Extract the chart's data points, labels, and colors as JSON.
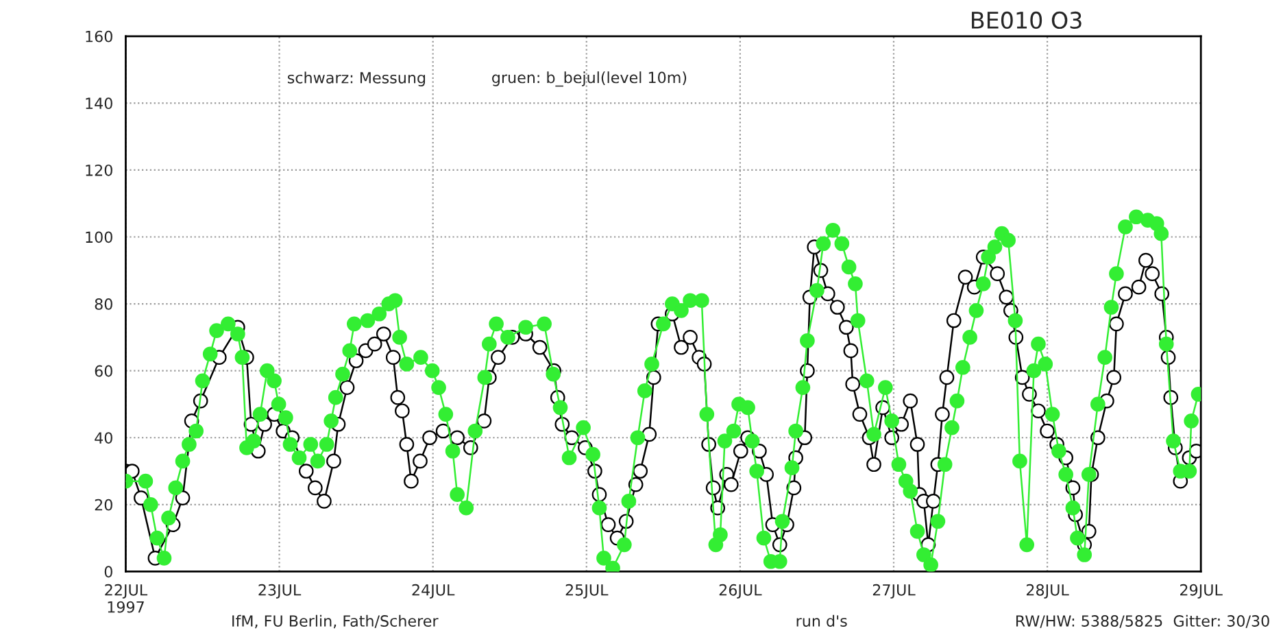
{
  "chart_data": {
    "type": "line",
    "title": "BE010 O3",
    "annotations": [
      "schwarz: Messung",
      "gruen: b_bejul(level 10m)",
      "IfM, FU Berlin, Fath/Scherer",
      "run d's",
      "RW/HW: 5388/5825  Gitter: 30/30"
    ],
    "xlim": [
      "1997-07-22",
      "1997-07-29"
    ],
    "xticks": [
      {
        "value": "1997-07-22",
        "label": "22JUL\n1997"
      },
      {
        "value": "1997-07-23",
        "label": "23JUL"
      },
      {
        "value": "1997-07-24",
        "label": "24JUL"
      },
      {
        "value": "1997-07-25",
        "label": "25JUL"
      },
      {
        "value": "1997-07-26",
        "label": "26JUL"
      },
      {
        "value": "1997-07-27",
        "label": "27JUL"
      },
      {
        "value": "1997-07-28",
        "label": "28JUL"
      },
      {
        "value": "1997-07-29",
        "label": "29JUL"
      }
    ],
    "ylim": [
      0,
      160
    ],
    "yticks": [
      0,
      20,
      40,
      60,
      80,
      100,
      120,
      140,
      160
    ],
    "grid": true,
    "marker": "circle",
    "series": [
      {
        "color": "#000000",
        "x": [
          "1997-07-22T00:00",
          "1997-07-22T01:00",
          "1997-07-22T02:24",
          "1997-07-22T04:36",
          "1997-07-22T07:24",
          "1997-07-22T08:54",
          "1997-07-22T10:18",
          "1997-07-22T11:42",
          "1997-07-22T14:36",
          "1997-07-22T17:30",
          "1997-07-22T18:54",
          "1997-07-22T19:36",
          "1997-07-22T20:42",
          "1997-07-22T21:42",
          "1997-07-22T23:12",
          "1997-07-23T00:36",
          "1997-07-23T02:00",
          "1997-07-23T04:12",
          "1997-07-23T05:36",
          "1997-07-23T07:00",
          "1997-07-23T08:30",
          "1997-07-23T09:12",
          "1997-07-23T10:36",
          "1997-07-23T12:00",
          "1997-07-23T13:30",
          "1997-07-23T14:54",
          "1997-07-23T16:18",
          "1997-07-23T17:48",
          "1997-07-23T18:30",
          "1997-07-23T19:12",
          "1997-07-23T19:54",
          "1997-07-23T20:36",
          "1997-07-23T22:00",
          "1997-07-23T23:30",
          "1997-07-24T01:36",
          "1997-07-24T03:48",
          "1997-07-24T05:54",
          "1997-07-24T08:00",
          "1997-07-24T08:48",
          "1997-07-24T10:12",
          "1997-07-24T12:24",
          "1997-07-24T14:30",
          "1997-07-24T16:42",
          "1997-07-24T18:54",
          "1997-07-24T19:30",
          "1997-07-24T20:12",
          "1997-07-24T21:42",
          "1997-07-24T23:48",
          "1997-07-25T01:18",
          "1997-07-25T02:00",
          "1997-07-25T03:24",
          "1997-07-25T04:48",
          "1997-07-25T06:12",
          "1997-07-25T07:42",
          "1997-07-25T08:24",
          "1997-07-25T09:48",
          "1997-07-25T10:30",
          "1997-07-25T11:12",
          "1997-07-25T13:24",
          "1997-07-25T14:48",
          "1997-07-25T16:12",
          "1997-07-25T17:36",
          "1997-07-25T18:24",
          "1997-07-25T19:06",
          "1997-07-25T19:48",
          "1997-07-25T20:30",
          "1997-07-25T21:54",
          "1997-07-25T22:36",
          "1997-07-26T00:06",
          "1997-07-26T01:12",
          "1997-07-26T03:00",
          "1997-07-26T04:06",
          "1997-07-26T05:06",
          "1997-07-26T06:12",
          "1997-07-26T07:18",
          "1997-07-26T08:24",
          "1997-07-26T08:42",
          "1997-07-26T10:06",
          "1997-07-26T10:30",
          "1997-07-26T10:54",
          "1997-07-26T11:36",
          "1997-07-26T12:36",
          "1997-07-26T13:42",
          "1997-07-26T15:12",
          "1997-07-26T16:36",
          "1997-07-26T17:18",
          "1997-07-26T17:36",
          "1997-07-26T18:42",
          "1997-07-26T20:12",
          "1997-07-26T20:54",
          "1997-07-26T22:18",
          "1997-07-26T23:42",
          "1997-07-27T01:12",
          "1997-07-27T02:36",
          "1997-07-27T03:42",
          "1997-07-27T04:00",
          "1997-07-27T04:42",
          "1997-07-27T05:24",
          "1997-07-27T06:12",
          "1997-07-27T06:54",
          "1997-07-27T07:36",
          "1997-07-27T08:18",
          "1997-07-27T09:24",
          "1997-07-27T11:12",
          "1997-07-27T12:36",
          "1997-07-27T14:00",
          "1997-07-27T16:12",
          "1997-07-27T17:36",
          "1997-07-27T18:18",
          "1997-07-27T19:06",
          "1997-07-27T20:06",
          "1997-07-27T21:12",
          "1997-07-27T22:36",
          "1997-07-28T00:00",
          "1997-07-28T01:30",
          "1997-07-28T02:54",
          "1997-07-28T04:00",
          "1997-07-28T04:24",
          "1997-07-28T05:48",
          "1997-07-28T06:30",
          "1997-07-28T06:54",
          "1997-07-28T07:54",
          "1997-07-28T09:18",
          "1997-07-28T10:24",
          "1997-07-28T10:48",
          "1997-07-28T12:12",
          "1997-07-28T14:18",
          "1997-07-28T15:24",
          "1997-07-28T16:24",
          "1997-07-28T17:54",
          "1997-07-28T18:36",
          "1997-07-28T18:54",
          "1997-07-28T19:18",
          "1997-07-28T20:00",
          "1997-07-28T20:48",
          "1997-07-28T22:12",
          "1997-07-28T23:18"
        ],
        "values": [
          30,
          30,
          22,
          4,
          14,
          22,
          45,
          51,
          64,
          73,
          64,
          44,
          36,
          44,
          47,
          42,
          40,
          30,
          25,
          21,
          33,
          44,
          55,
          63,
          66,
          68,
          71,
          64,
          52,
          48,
          38,
          27,
          33,
          40,
          42,
          40,
          37,
          45,
          58,
          64,
          70,
          71,
          67,
          60,
          52,
          44,
          40,
          37,
          30,
          23,
          14,
          10,
          15,
          26,
          30,
          41,
          58,
          74,
          77,
          67,
          70,
          64,
          62,
          38,
          25,
          19,
          29,
          26,
          36,
          40,
          36,
          29,
          14,
          8,
          14,
          25,
          34,
          40,
          60,
          82,
          97,
          90,
          83,
          79,
          73,
          66,
          56,
          47,
          40,
          32,
          49,
          40,
          44,
          51,
          38,
          23,
          21,
          8,
          21,
          32,
          47,
          58,
          75,
          88,
          85,
          94,
          89,
          82,
          78,
          70,
          58,
          53,
          48,
          42,
          38,
          34,
          25,
          17,
          8,
          12,
          29,
          40,
          51,
          58,
          74,
          83,
          85,
          93,
          89,
          83,
          70,
          64,
          52,
          37,
          27,
          34,
          36
        ]
      },
      {
        "color": "#33ee33",
        "x": [
          "1997-07-22T00:00",
          "1997-07-22T03:06",
          "1997-07-22T03:54",
          "1997-07-22T04:54",
          "1997-07-22T06:00",
          "1997-07-22T06:42",
          "1997-07-22T07:48",
          "1997-07-22T08:54",
          "1997-07-22T09:54",
          "1997-07-22T11:00",
          "1997-07-22T12:00",
          "1997-07-22T13:12",
          "1997-07-22T14:12",
          "1997-07-22T16:00",
          "1997-07-22T17:30",
          "1997-07-22T18:12",
          "1997-07-22T18:54",
          "1997-07-22T20:00",
          "1997-07-22T21:00",
          "1997-07-22T22:06",
          "1997-07-22T23:12",
          "1997-07-22T23:54",
          "1997-07-23T01:00",
          "1997-07-23T01:42",
          "1997-07-23T03:06",
          "1997-07-23T04:54",
          "1997-07-23T06:00",
          "1997-07-23T07:24",
          "1997-07-23T08:06",
          "1997-07-23T08:48",
          "1997-07-23T09:54",
          "1997-07-23T11:00",
          "1997-07-23T11:42",
          "1997-07-23T13:48",
          "1997-07-23T15:36",
          "1997-07-23T17:06",
          "1997-07-23T18:06",
          "1997-07-23T18:48",
          "1997-07-23T19:54",
          "1997-07-23T22:06",
          "1997-07-23T23:54",
          "1997-07-24T00:54",
          "1997-07-24T02:00",
          "1997-07-24T03:06",
          "1997-07-24T03:48",
          "1997-07-24T05:12",
          "1997-07-24T06:36",
          "1997-07-24T08:06",
          "1997-07-24T08:48",
          "1997-07-24T09:54",
          "1997-07-24T11:42",
          "1997-07-24T14:30",
          "1997-07-24T17:24",
          "1997-07-24T18:48",
          "1997-07-24T19:54",
          "1997-07-24T21:18",
          "1997-07-24T23:30",
          "1997-07-25T01:00",
          "1997-07-25T02:00",
          "1997-07-25T02:42",
          "1997-07-25T04:06",
          "1997-07-25T05:54",
          "1997-07-25T06:36",
          "1997-07-25T08:00",
          "1997-07-25T09:06",
          "1997-07-25T10:12",
          "1997-07-25T12:00",
          "1997-07-25T13:24",
          "1997-07-25T14:48",
          "1997-07-25T16:12",
          "1997-07-25T18:00",
          "1997-07-25T18:48",
          "1997-07-25T20:12",
          "1997-07-25T20:54",
          "1997-07-25T21:36",
          "1997-07-25T23:00",
          "1997-07-25T23:48",
          "1997-07-26T01:12",
          "1997-07-26T01:54",
          "1997-07-26T02:36",
          "1997-07-26T03:42",
          "1997-07-26T04:48",
          "1997-07-26T06:12",
          "1997-07-26T06:36",
          "1997-07-26T08:06",
          "1997-07-26T08:42",
          "1997-07-26T09:48",
          "1997-07-26T10:30",
          "1997-07-26T12:00",
          "1997-07-26T13:00",
          "1997-07-26T14:30",
          "1997-07-26T15:54",
          "1997-07-26T17:00",
          "1997-07-26T18:00",
          "1997-07-26T18:24",
          "1997-07-26T19:48",
          "1997-07-26T20:54",
          "1997-07-26T22:42",
          "1997-07-26T23:42",
          "1997-07-27T00:48",
          "1997-07-27T01:54",
          "1997-07-27T02:36",
          "1997-07-27T03:42",
          "1997-07-27T04:42",
          "1997-07-27T05:48",
          "1997-07-27T06:54",
          "1997-07-27T08:00",
          "1997-07-27T09:06",
          "1997-07-27T09:54",
          "1997-07-27T10:48",
          "1997-07-27T11:54",
          "1997-07-27T12:54",
          "1997-07-27T14:00",
          "1997-07-27T14:48",
          "1997-07-27T15:48",
          "1997-07-27T16:54",
          "1997-07-27T17:54",
          "1997-07-27T19:00",
          "1997-07-27T19:42",
          "1997-07-27T20:48",
          "1997-07-27T21:54",
          "1997-07-27T22:36",
          "1997-07-27T23:42",
          "1997-07-28T00:48",
          "1997-07-28T01:48",
          "1997-07-28T02:54",
          "1997-07-28T04:00",
          "1997-07-28T04:42",
          "1997-07-28T05:48",
          "1997-07-28T06:30",
          "1997-07-28T07:54",
          "1997-07-28T09:00",
          "1997-07-28T10:00",
          "1997-07-28T10:48",
          "1997-07-28T12:12",
          "1997-07-28T13:54",
          "1997-07-28T15:42",
          "1997-07-28T17:06",
          "1997-07-28T17:48",
          "1997-07-28T18:36",
          "1997-07-28T19:42",
          "1997-07-28T20:48",
          "1997-07-28T22:12",
          "1997-07-28T22:30",
          "1997-07-28T23:36"
        ],
        "values": [
          27,
          27,
          20,
          10,
          4,
          16,
          25,
          33,
          38,
          42,
          57,
          65,
          72,
          74,
          71,
          64,
          37,
          39,
          47,
          60,
          57,
          50,
          46,
          38,
          34,
          38,
          33,
          38,
          45,
          52,
          59,
          66,
          74,
          75,
          77,
          80,
          81,
          70,
          62,
          64,
          60,
          55,
          47,
          36,
          23,
          19,
          42,
          58,
          68,
          74,
          70,
          73,
          74,
          59,
          49,
          34,
          43,
          35,
          19,
          4,
          1,
          8,
          21,
          40,
          54,
          62,
          74,
          80,
          78,
          81,
          81,
          47,
          8,
          11,
          39,
          42,
          50,
          49,
          39,
          30,
          10,
          3,
          3,
          15,
          31,
          42,
          55,
          69,
          84,
          98,
          102,
          98,
          91,
          86,
          75,
          57,
          41,
          55,
          45,
          32,
          27,
          24,
          12,
          5,
          2,
          15,
          32,
          43,
          51,
          61,
          70,
          78,
          86,
          94,
          97,
          101,
          99,
          75,
          33,
          8,
          60,
          68,
          62,
          47,
          36,
          29,
          19,
          10,
          5,
          29,
          50,
          64,
          79,
          89,
          103,
          106,
          105,
          104,
          101,
          68,
          39,
          30,
          30,
          45,
          53
        ]
      }
    ]
  }
}
